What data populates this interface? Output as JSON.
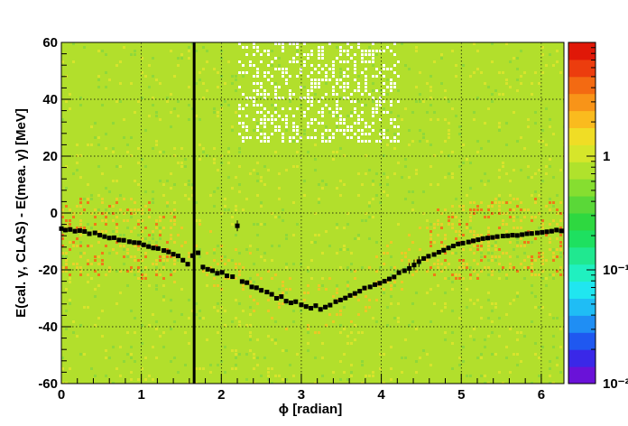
{
  "chart_data": {
    "type": "heatmap",
    "xlabel": "ϕ [radian]",
    "ylabel": "E(cal. γ, CLAS) - E(mea. γ) [MeV]",
    "xlim": [
      0,
      6.2832
    ],
    "ylim": [
      -60,
      60
    ],
    "x_ticks": [
      0,
      1,
      2,
      3,
      4,
      5,
      6
    ],
    "x_tick_labels": [
      "0",
      "1",
      "2",
      "3",
      "4",
      "5",
      "6"
    ],
    "y_ticks": [
      -60,
      -40,
      -20,
      0,
      20,
      40,
      60
    ],
    "y_tick_labels": [
      "-60",
      "-40",
      "-20",
      "0",
      "20",
      "40",
      "60"
    ],
    "grid": true,
    "colorbar": {
      "scale": "log",
      "range": [
        0.01,
        10
      ],
      "ticks": [
        0.01,
        0.1,
        1
      ],
      "tick_labels": [
        "10⁻²",
        "10⁻¹",
        "1"
      ],
      "palette": [
        "#6a12d8",
        "#3a28e8",
        "#1f58f0",
        "#1f8ef4",
        "#1fbdf5",
        "#20e6f0",
        "#20f0c0",
        "#20e890",
        "#1ee060",
        "#2ed840",
        "#5ad838",
        "#86de30",
        "#b0e22c",
        "#d6e62a",
        "#f0dd25",
        "#fabb1e",
        "#f89418",
        "#f36a12",
        "#ec3d0e",
        "#e01808"
      ]
    },
    "vertical_line_x": 1.66,
    "series": [
      {
        "type": "scatter_with_errors",
        "points": [
          {
            "x": 0.0,
            "y": -5.5
          },
          {
            "x": 0.05,
            "y": -6.0
          },
          {
            "x": 0.11,
            "y": -5.8
          },
          {
            "x": 0.17,
            "y": -6.4
          },
          {
            "x": 0.23,
            "y": -6.2
          },
          {
            "x": 0.29,
            "y": -6.5
          },
          {
            "x": 0.35,
            "y": -7.3
          },
          {
            "x": 0.42,
            "y": -7.0
          },
          {
            "x": 0.48,
            "y": -7.8
          },
          {
            "x": 0.54,
            "y": -8.3
          },
          {
            "x": 0.6,
            "y": -8.8
          },
          {
            "x": 0.66,
            "y": -8.7
          },
          {
            "x": 0.72,
            "y": -9.5
          },
          {
            "x": 0.78,
            "y": -9.6
          },
          {
            "x": 0.85,
            "y": -10.1
          },
          {
            "x": 0.91,
            "y": -10.4
          },
          {
            "x": 0.97,
            "y": -10.5
          },
          {
            "x": 1.03,
            "y": -11.2
          },
          {
            "x": 1.09,
            "y": -11.8
          },
          {
            "x": 1.15,
            "y": -12.3
          },
          {
            "x": 1.21,
            "y": -12.5
          },
          {
            "x": 1.28,
            "y": -13.2
          },
          {
            "x": 1.34,
            "y": -13.7
          },
          {
            "x": 1.4,
            "y": -14.5
          },
          {
            "x": 1.46,
            "y": -15.1
          },
          {
            "x": 1.52,
            "y": -16.6
          },
          {
            "x": 1.58,
            "y": -18.0
          },
          {
            "x": 1.64,
            "y": -15.0
          },
          {
            "x": 1.71,
            "y": -14.0
          },
          {
            "x": 1.77,
            "y": -19.0
          },
          {
            "x": 1.83,
            "y": -19.8
          },
          {
            "x": 1.89,
            "y": -20.3
          },
          {
            "x": 1.95,
            "y": -21.2
          },
          {
            "x": 2.01,
            "y": -20.9
          },
          {
            "x": 2.07,
            "y": -22.1
          },
          {
            "x": 2.14,
            "y": -22.4
          },
          {
            "x": 2.2,
            "y": -4.5
          },
          {
            "x": 2.26,
            "y": -24.1
          },
          {
            "x": 2.32,
            "y": -24.5
          },
          {
            "x": 2.38,
            "y": -26.0
          },
          {
            "x": 2.44,
            "y": -26.3
          },
          {
            "x": 2.5,
            "y": -27.2
          },
          {
            "x": 2.57,
            "y": -27.8
          },
          {
            "x": 2.63,
            "y": -28.6
          },
          {
            "x": 2.69,
            "y": -30.0
          },
          {
            "x": 2.75,
            "y": -29.4
          },
          {
            "x": 2.81,
            "y": -31.0
          },
          {
            "x": 2.87,
            "y": -31.6
          },
          {
            "x": 2.93,
            "y": -31.2
          },
          {
            "x": 3.0,
            "y": -32.3
          },
          {
            "x": 3.06,
            "y": -32.9
          },
          {
            "x": 3.12,
            "y": -33.5
          },
          {
            "x": 3.18,
            "y": -32.6
          },
          {
            "x": 3.24,
            "y": -33.9
          },
          {
            "x": 3.3,
            "y": -33.1
          },
          {
            "x": 3.36,
            "y": -32.4
          },
          {
            "x": 3.43,
            "y": -31.2
          },
          {
            "x": 3.49,
            "y": -30.6
          },
          {
            "x": 3.55,
            "y": -29.9
          },
          {
            "x": 3.61,
            "y": -29.0
          },
          {
            "x": 3.67,
            "y": -28.3
          },
          {
            "x": 3.73,
            "y": -27.5
          },
          {
            "x": 3.79,
            "y": -26.4
          },
          {
            "x": 3.86,
            "y": -26.0
          },
          {
            "x": 3.92,
            "y": -25.2
          },
          {
            "x": 3.98,
            "y": -24.7
          },
          {
            "x": 4.04,
            "y": -24.0
          },
          {
            "x": 4.1,
            "y": -23.2
          },
          {
            "x": 4.16,
            "y": -22.5
          },
          {
            "x": 4.22,
            "y": -21.0
          },
          {
            "x": 4.29,
            "y": -20.3
          },
          {
            "x": 4.35,
            "y": -19.5
          },
          {
            "x": 4.41,
            "y": -18.3
          },
          {
            "x": 4.47,
            "y": -17.1
          },
          {
            "x": 4.53,
            "y": -16.0
          },
          {
            "x": 4.59,
            "y": -15.2
          },
          {
            "x": 4.66,
            "y": -14.6
          },
          {
            "x": 4.72,
            "y": -13.8
          },
          {
            "x": 4.78,
            "y": -13.1
          },
          {
            "x": 4.84,
            "y": -12.3
          },
          {
            "x": 4.9,
            "y": -11.6
          },
          {
            "x": 4.96,
            "y": -10.9
          },
          {
            "x": 5.02,
            "y": -10.6
          },
          {
            "x": 5.09,
            "y": -10.2
          },
          {
            "x": 5.15,
            "y": -9.8
          },
          {
            "x": 5.21,
            "y": -9.4
          },
          {
            "x": 5.27,
            "y": -9.0
          },
          {
            "x": 5.33,
            "y": -8.8
          },
          {
            "x": 5.39,
            "y": -8.6
          },
          {
            "x": 5.45,
            "y": -8.3
          },
          {
            "x": 5.52,
            "y": -8.1
          },
          {
            "x": 5.58,
            "y": -8.0
          },
          {
            "x": 5.64,
            "y": -7.8
          },
          {
            "x": 5.7,
            "y": -7.9
          },
          {
            "x": 5.76,
            "y": -7.6
          },
          {
            "x": 5.82,
            "y": -7.3
          },
          {
            "x": 5.88,
            "y": -7.2
          },
          {
            "x": 5.95,
            "y": -7.0
          },
          {
            "x": 6.01,
            "y": -6.8
          },
          {
            "x": 6.07,
            "y": -6.6
          },
          {
            "x": 6.13,
            "y": -6.4
          },
          {
            "x": 6.19,
            "y": -6.0
          },
          {
            "x": 6.25,
            "y": -6.3
          }
        ]
      }
    ]
  }
}
